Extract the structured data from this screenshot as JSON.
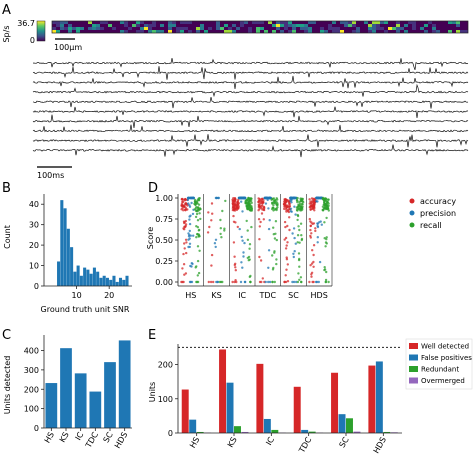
{
  "panels": {
    "A": {
      "letter": "A",
      "colorbar_ylabel": "Sp/s",
      "colorbar_max": "36.7",
      "colorbar_min": "0",
      "scalebar_space": "100μm",
      "scalebar_time": "100ms",
      "num_traces": 10
    },
    "B": {
      "letter": "B",
      "chart_data": {
        "type": "bar",
        "xlabel": "Ground truth unit SNR",
        "ylabel": "Count",
        "ylim": [
          0,
          45
        ],
        "xlim": [
          0,
          27
        ],
        "yticks": [
          "0",
          "10",
          "20",
          "30",
          "40"
        ],
        "xticks": [
          "10",
          "20"
        ],
        "bin_edges_start": 4,
        "bin_width": 1,
        "values": [
          12,
          42,
          38,
          28,
          19,
          7,
          10,
          5,
          9,
          8,
          6,
          9,
          7,
          4,
          5,
          4,
          3,
          5,
          2,
          4,
          3,
          5
        ]
      }
    },
    "C": {
      "letter": "C",
      "chart_data": {
        "type": "bar",
        "ylabel": "Units detected",
        "ylim": [
          0,
          480
        ],
        "yticks": [
          "0",
          "100",
          "200",
          "300",
          "400"
        ],
        "categories": [
          "HS",
          "KS",
          "IC",
          "TDC",
          "SC",
          "HDS"
        ],
        "values": [
          232,
          412,
          282,
          188,
          340,
          452
        ],
        "color": "#1f77b4"
      }
    },
    "D": {
      "letter": "D",
      "chart_data": {
        "type": "scatter",
        "ylabel": "Score",
        "ylim": [
          0,
          1.0
        ],
        "yticks": [
          "0.00",
          "0.25",
          "0.50",
          "0.75",
          "1.00"
        ],
        "categories": [
          "HS",
          "KS",
          "IC",
          "TDC",
          "SC",
          "HDS"
        ],
        "series": [
          {
            "name": "accuracy",
            "color": "#d62728"
          },
          {
            "name": "precision",
            "color": "#1f77b4"
          },
          {
            "name": "recall",
            "color": "#2ca02c"
          }
        ],
        "legend_position": "right"
      }
    },
    "E": {
      "letter": "E",
      "chart_data": {
        "type": "bar",
        "ylabel": "Units",
        "ylim": [
          0,
          260
        ],
        "yticks": [
          "0",
          "100",
          "200"
        ],
        "categories": [
          "HS",
          "KS",
          "IC",
          "TDC",
          "SC",
          "HDS"
        ],
        "reference_line": 250,
        "series": [
          {
            "name": "Well detected",
            "color": "#d62728",
            "values": [
              127,
              244,
              202,
              135,
              176,
              197
            ]
          },
          {
            "name": "False positives",
            "color": "#1f77b4",
            "values": [
              39,
              147,
              41,
              9,
              55,
              209
            ]
          },
          {
            "name": "Redundant",
            "color": "#2ca02c",
            "values": [
              3,
              20,
              9,
              4,
              43,
              3
            ]
          },
          {
            "name": "Overmerged",
            "color": "#9467bd",
            "values": [
              1,
              3,
              1,
              1,
              4,
              2
            ]
          }
        ],
        "legend_position": "right"
      }
    }
  }
}
